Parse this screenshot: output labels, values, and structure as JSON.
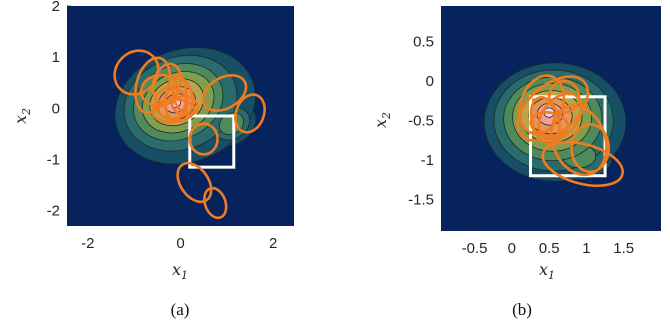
{
  "figure": {
    "panels": [
      {
        "caption": "(a)"
      },
      {
        "caption": "(b)"
      }
    ]
  },
  "colors": {
    "background": "#06235e",
    "ellipse": "#f07b20",
    "box": "#ffffff",
    "contour_line": "#1c2a2a",
    "fills": [
      "#06235e",
      "#164f66",
      "#2a6c6c",
      "#4f8a5c",
      "#809e4c",
      "#b8a64a",
      "#e5945a",
      "#f59e95",
      "#fbd2ea"
    ]
  },
  "chart_data": [
    {
      "type": "contour",
      "caption": "(a)",
      "xlabel": "x_1",
      "ylabel": "x_2",
      "xlim": [
        -2.45,
        2.45
      ],
      "ylim": [
        -2.3,
        2.0
      ],
      "xticks": [
        -2,
        0,
        2
      ],
      "yticks": [
        -2,
        -1,
        0,
        1,
        2
      ],
      "xtick_labels": [
        "-2",
        "0",
        "2"
      ],
      "ytick_labels": [
        "-2",
        "-1",
        "0",
        "1",
        "2"
      ],
      "density_peak": [
        -0.1,
        0.1
      ],
      "contour_levels": [
        {
          "center": [
            0.1,
            0.05
          ],
          "rx": 1.55,
          "ry": 1.1,
          "rot": -20
        },
        {
          "center": [
            0.0,
            0.1
          ],
          "rx": 1.25,
          "ry": 0.9,
          "rot": -22
        },
        {
          "center": [
            -0.05,
            0.12
          ],
          "rx": 1.0,
          "ry": 0.72,
          "rot": -25
        },
        {
          "center": [
            -0.05,
            0.12
          ],
          "rx": 0.8,
          "ry": 0.57,
          "rot": -25
        },
        {
          "center": [
            -0.08,
            0.12
          ],
          "rx": 0.6,
          "ry": 0.44,
          "rot": -25
        },
        {
          "center": [
            -0.08,
            0.1
          ],
          "rx": 0.42,
          "ry": 0.31,
          "rot": -25
        },
        {
          "center": [
            -0.1,
            0.1
          ],
          "rx": 0.24,
          "ry": 0.18,
          "rot": -25
        },
        {
          "center": [
            -0.1,
            0.1
          ],
          "rx": 0.1,
          "ry": 0.08,
          "rot": -25
        }
      ],
      "bump": {
        "center": [
          1.1,
          -0.3
        ],
        "rx": 0.55,
        "ry": 0.4,
        "rot": -30
      },
      "box": {
        "x0": 0.2,
        "x1": 1.15,
        "y0": -1.15,
        "y1": -0.15
      },
      "ellipses": [
        {
          "cx": -0.95,
          "cy": 0.7,
          "rx": 0.5,
          "ry": 0.4,
          "rot": -45
        },
        {
          "cx": -0.6,
          "cy": 0.45,
          "rx": 0.35,
          "ry": 0.55,
          "rot": 15
        },
        {
          "cx": -0.45,
          "cy": 0.35,
          "rx": 0.4,
          "ry": 0.3,
          "rot": -10
        },
        {
          "cx": -0.3,
          "cy": 0.5,
          "rx": 0.28,
          "ry": 0.38,
          "rot": 20
        },
        {
          "cx": -0.2,
          "cy": 0.1,
          "rx": 0.35,
          "ry": 0.3,
          "rot": 30
        },
        {
          "cx": -0.1,
          "cy": 0.2,
          "rx": 0.22,
          "ry": 0.45,
          "rot": 5
        },
        {
          "cx": 0.05,
          "cy": 0.25,
          "rx": 0.2,
          "ry": 0.35,
          "rot": -15
        },
        {
          "cx": -0.15,
          "cy": -0.05,
          "rx": 0.45,
          "ry": 0.22,
          "rot": -5
        },
        {
          "cx": 0.1,
          "cy": 0.05,
          "rx": 0.28,
          "ry": 0.18,
          "rot": 10
        },
        {
          "cx": 0.95,
          "cy": 0.3,
          "rx": 0.5,
          "ry": 0.3,
          "rot": -30
        },
        {
          "cx": 1.5,
          "cy": -0.1,
          "rx": 0.3,
          "ry": 0.38,
          "rot": 20
        },
        {
          "cx": 0.5,
          "cy": -0.6,
          "rx": 0.3,
          "ry": 0.3,
          "rot": 0
        },
        {
          "cx": 0.3,
          "cy": -1.45,
          "rx": 0.3,
          "ry": 0.42,
          "rot": -35
        },
        {
          "cx": 0.75,
          "cy": -1.85,
          "rx": 0.22,
          "ry": 0.3,
          "rot": -20
        }
      ]
    },
    {
      "type": "contour",
      "caption": "(b)",
      "xlabel": "x_1",
      "ylabel": "x_2",
      "xlim": [
        -0.95,
        2.0
      ],
      "ylim": [
        -1.9,
        0.95
      ],
      "xticks": [
        -0.5,
        0,
        0.5,
        1,
        1.5
      ],
      "yticks": [
        -1.5,
        -1,
        -0.5,
        0,
        0.5
      ],
      "xtick_labels": [
        "-0.5",
        "0",
        "0.5",
        "1",
        "1.5"
      ],
      "ytick_labels": [
        "-1.5",
        "-1",
        "-0.5",
        "0",
        "0.5"
      ],
      "density_peak": [
        0.5,
        -0.4
      ],
      "contour_levels": [
        {
          "center": [
            0.58,
            -0.52
          ],
          "rx": 0.95,
          "ry": 0.75,
          "rot": 0
        },
        {
          "center": [
            0.56,
            -0.5
          ],
          "rx": 0.8,
          "ry": 0.64,
          "rot": 0
        },
        {
          "center": [
            0.55,
            -0.48
          ],
          "rx": 0.66,
          "ry": 0.53,
          "rot": 0
        },
        {
          "center": [
            0.54,
            -0.46
          ],
          "rx": 0.53,
          "ry": 0.43,
          "rot": 0
        },
        {
          "center": [
            0.53,
            -0.45
          ],
          "rx": 0.41,
          "ry": 0.33,
          "rot": 0
        },
        {
          "center": [
            0.52,
            -0.44
          ],
          "rx": 0.29,
          "ry": 0.23,
          "rot": 0
        },
        {
          "center": [
            0.51,
            -0.42
          ],
          "rx": 0.17,
          "ry": 0.14,
          "rot": 0
        },
        {
          "center": [
            0.5,
            -0.4
          ],
          "rx": 0.07,
          "ry": 0.06,
          "rot": 0
        }
      ],
      "bump": {
        "center": [
          0.9,
          -0.95
        ],
        "rx": 0.45,
        "ry": 0.3,
        "rot": 0
      },
      "box": {
        "x0": 0.25,
        "x1": 1.25,
        "y0": -1.2,
        "y1": -0.2
      },
      "ellipses": [
        {
          "cx": 0.4,
          "cy": -0.3,
          "rx": 0.28,
          "ry": 0.38,
          "rot": 20
        },
        {
          "cx": 0.55,
          "cy": -0.35,
          "rx": 0.55,
          "ry": 0.3,
          "rot": -40
        },
        {
          "cx": 0.65,
          "cy": -0.45,
          "rx": 0.35,
          "ry": 0.22,
          "rot": -50
        },
        {
          "cx": 0.5,
          "cy": -0.55,
          "rx": 0.25,
          "ry": 0.15,
          "rot": 10
        },
        {
          "cx": 0.45,
          "cy": -0.5,
          "rx": 0.18,
          "ry": 0.3,
          "rot": -15
        },
        {
          "cx": 0.9,
          "cy": -0.75,
          "rx": 0.35,
          "ry": 0.45,
          "rot": -20
        },
        {
          "cx": 0.95,
          "cy": -1.05,
          "rx": 0.55,
          "ry": 0.25,
          "rot": 15
        },
        {
          "cx": 1.05,
          "cy": -0.85,
          "rx": 0.25,
          "ry": 0.3,
          "rot": 0
        },
        {
          "cx": 0.7,
          "cy": -0.2,
          "rx": 0.2,
          "ry": 0.2,
          "rot": 0
        }
      ]
    }
  ]
}
